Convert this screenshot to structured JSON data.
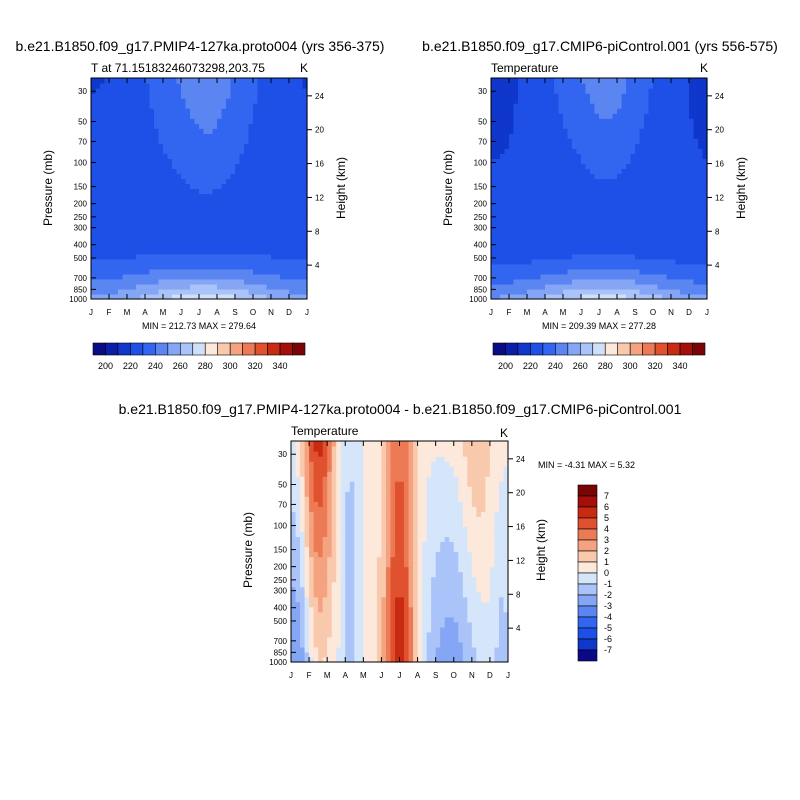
{
  "chart_data": [
    {
      "type": "heatmap",
      "title": "b.e21.B1850.f09_g17.PMIP4-127ka.proto004 (yrs 356-375)",
      "subtitle": "T at 71.15183246073298,203.75",
      "units": "K",
      "xlabel": "",
      "ylabel": "Pressure (mb)",
      "ylabel_right": "Height (km)",
      "x_ticks": [
        "J",
        "F",
        "M",
        "A",
        "M",
        "J",
        "J",
        "A",
        "S",
        "O",
        "N",
        "D",
        "J"
      ],
      "y_ticks": [
        30,
        50,
        70,
        100,
        150,
        200,
        250,
        300,
        400,
        500,
        700,
        850,
        1000
      ],
      "y_right_ticks": [
        24,
        20,
        16,
        12,
        8,
        4
      ],
      "ylim": [
        1000,
        24
      ],
      "y_scale": "log",
      "stats": "MIN = 212.73   MAX = 279.64",
      "min": 212.73,
      "max": 279.64,
      "levels": [
        200,
        210,
        220,
        230,
        240,
        250,
        260,
        270,
        280,
        290,
        300,
        310,
        320,
        330,
        340
      ],
      "months": [
        "J",
        "F",
        "M",
        "A",
        "M",
        "J",
        "J",
        "A",
        "S",
        "O",
        "N",
        "D",
        "J"
      ],
      "pressure": [
        30,
        50,
        70,
        100,
        150,
        200,
        250,
        300,
        400,
        500,
        700,
        850,
        1000
      ],
      "colorbar_ticks": [
        200,
        220,
        240,
        260,
        280,
        300,
        320,
        340
      ]
    },
    {
      "type": "heatmap",
      "title": "b.e21.B1850.f09_g17.CMIP6-piControl.001 (yrs 556-575)",
      "subtitle": "Temperature",
      "units": "K",
      "xlabel": "",
      "ylabel": "Pressure (mb)",
      "ylabel_right": "Height (km)",
      "x_ticks": [
        "J",
        "F",
        "M",
        "A",
        "M",
        "J",
        "J",
        "A",
        "S",
        "O",
        "N",
        "D",
        "J"
      ],
      "y_ticks": [
        30,
        50,
        70,
        100,
        150,
        200,
        250,
        300,
        400,
        500,
        700,
        850,
        1000
      ],
      "y_right_ticks": [
        24,
        20,
        16,
        12,
        8,
        4
      ],
      "ylim": [
        1000,
        24
      ],
      "y_scale": "log",
      "stats": "MIN = 209.39   MAX = 277.28",
      "min": 209.39,
      "max": 277.28,
      "levels": [
        200,
        210,
        220,
        230,
        240,
        250,
        260,
        270,
        280,
        290,
        300,
        310,
        320,
        330,
        340
      ],
      "months": [
        "J",
        "F",
        "M",
        "A",
        "M",
        "J",
        "J",
        "A",
        "S",
        "O",
        "N",
        "D",
        "J"
      ],
      "pressure": [
        30,
        50,
        70,
        100,
        150,
        200,
        250,
        300,
        400,
        500,
        700,
        850,
        1000
      ],
      "colorbar_ticks": [
        200,
        220,
        240,
        260,
        280,
        300,
        320,
        340
      ]
    },
    {
      "type": "heatmap",
      "title": "b.e21.B1850.f09_g17.PMIP4-127ka.proto004 - b.e21.B1850.f09_g17.CMIP6-piControl.001",
      "subtitle": "Temperature",
      "units": "K",
      "xlabel": "",
      "ylabel": "Pressure (mb)",
      "ylabel_right": "Height (km)",
      "x_ticks": [
        "J",
        "F",
        "M",
        "A",
        "M",
        "J",
        "J",
        "A",
        "S",
        "O",
        "N",
        "D",
        "J"
      ],
      "y_ticks": [
        30,
        50,
        70,
        100,
        150,
        200,
        250,
        300,
        400,
        500,
        700,
        850,
        1000
      ],
      "y_right_ticks": [
        24,
        20,
        16,
        12,
        8,
        4
      ],
      "ylim": [
        1000,
        24
      ],
      "y_scale": "log",
      "stats": "MIN =  -4.31   MAX =   5.32",
      "min": -4.31,
      "max": 5.32,
      "levels": [
        -7,
        -6,
        -5,
        -4,
        -3,
        -2,
        -1,
        0,
        1,
        2,
        3,
        4,
        5,
        6,
        7
      ],
      "months": [
        "J",
        "F",
        "M",
        "A",
        "M",
        "J",
        "J",
        "A",
        "S",
        "O",
        "N",
        "D",
        "J"
      ],
      "pressure": [
        30,
        50,
        70,
        100,
        150,
        200,
        250,
        300,
        400,
        500,
        700,
        850,
        1000
      ],
      "colorbar_ticks": [
        7,
        6,
        5,
        4,
        3,
        2,
        1,
        0,
        -1,
        -2,
        -3,
        -4,
        -5,
        -6,
        -7
      ]
    }
  ],
  "colors": {
    "abs_palette": [
      "#0a0a86",
      "#0a1ea8",
      "#0f37cc",
      "#1e4fe6",
      "#3366f0",
      "#5b86f2",
      "#85a6f4",
      "#aac3f8",
      "#cfe0fb",
      "#fde9dc",
      "#f9c9ad",
      "#f4a27f",
      "#ec7a55",
      "#e0512f",
      "#c82a12",
      "#a50f0a",
      "#7a0505"
    ],
    "diff_palette": [
      "#0a0a86",
      "#0f37cc",
      "#1e4fe6",
      "#3366f0",
      "#5b86f2",
      "#85a6f4",
      "#aac3f8",
      "#d5e6fb",
      "#fde9dc",
      "#f9c9ad",
      "#f4a27f",
      "#ec7a55",
      "#e0512f",
      "#c82a12",
      "#a50f0a",
      "#7a0505"
    ]
  }
}
